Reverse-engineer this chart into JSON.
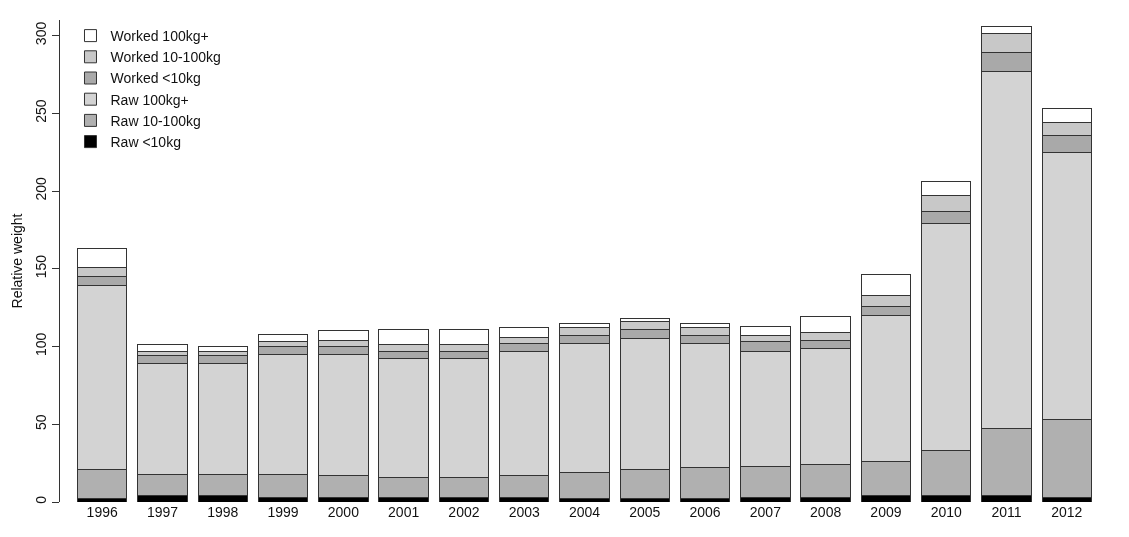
{
  "chart_data": {
    "type": "bar",
    "stacked": true,
    "ylabel": "Relative weight",
    "categories": [
      "1996",
      "1997",
      "1998",
      "1999",
      "2000",
      "2001",
      "2002",
      "2003",
      "2004",
      "2005",
      "2006",
      "2007",
      "2008",
      "2009",
      "2010",
      "2011",
      "2012"
    ],
    "series": [
      {
        "name": "Raw <10kg",
        "color": "#000000",
        "values": [
          2,
          4,
          4,
          3,
          3,
          3,
          3,
          3,
          2,
          2,
          2,
          3,
          3,
          4,
          4,
          4,
          3
        ]
      },
      {
        "name": "Raw 10-100kg",
        "color": "#b0b0b0",
        "values": [
          19,
          14,
          14,
          15,
          14,
          13,
          13,
          14,
          17,
          19,
          20,
          20,
          21,
          22,
          29,
          43,
          50
        ]
      },
      {
        "name": "Raw 100kg+",
        "color": "#d3d3d3",
        "values": [
          118,
          71,
          71,
          77,
          78,
          76,
          76,
          80,
          83,
          84,
          80,
          74,
          75,
          94,
          146,
          230,
          172
        ]
      },
      {
        "name": "Worked <10kg",
        "color": "#a9a9a9",
        "values": [
          6,
          5,
          5,
          5,
          5,
          5,
          5,
          5,
          5,
          6,
          5,
          6,
          5,
          6,
          8,
          12,
          11
        ]
      },
      {
        "name": "Worked 10-100kg",
        "color": "#c8c8c8",
        "values": [
          6,
          3,
          3,
          3,
          4,
          4,
          4,
          4,
          5,
          5,
          5,
          4,
          5,
          7,
          10,
          12,
          8
        ]
      },
      {
        "name": "Worked 100kg+",
        "color": "#ffffff",
        "values": [
          12,
          4,
          3,
          5,
          6,
          10,
          10,
          6,
          3,
          2,
          3,
          6,
          10,
          13,
          9,
          5,
          9
        ]
      }
    ],
    "ylim": [
      0,
      310
    ],
    "yticks": [
      0,
      50,
      100,
      150,
      200,
      250,
      300
    ],
    "grid": false,
    "legend": "top left"
  }
}
